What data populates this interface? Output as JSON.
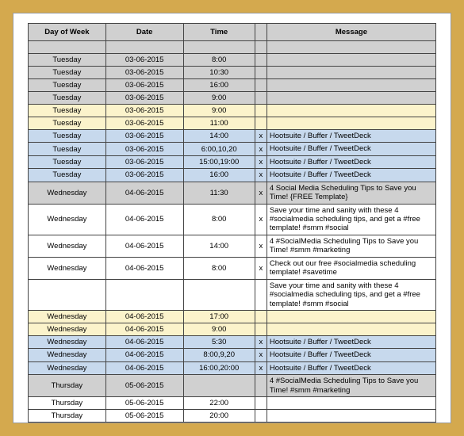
{
  "columns": [
    "Day of Week",
    "Date",
    "Time",
    "",
    "Message"
  ],
  "rows": [
    {
      "bg": "gray",
      "h": "norm",
      "day": "",
      "date": "",
      "time": "",
      "x": "",
      "msg": ""
    },
    {
      "bg": "gray",
      "h": "norm",
      "day": "Tuesday",
      "date": "03-06-2015",
      "time": "8:00",
      "x": "",
      "msg": ""
    },
    {
      "bg": "gray",
      "h": "norm",
      "day": "Tuesday",
      "date": "03-06-2015",
      "time": "10:30",
      "x": "",
      "msg": ""
    },
    {
      "bg": "gray",
      "h": "norm",
      "day": "Tuesday",
      "date": "03-06-2015",
      "time": "16:00",
      "x": "",
      "msg": ""
    },
    {
      "bg": "gray",
      "h": "norm",
      "day": "Tuesday",
      "date": "03-06-2015",
      "time": "9:00",
      "x": "",
      "msg": ""
    },
    {
      "bg": "yellow",
      "h": "norm",
      "day": "Tuesday",
      "date": "03-06-2015",
      "time": "9:00",
      "x": "",
      "msg": ""
    },
    {
      "bg": "yellow",
      "h": "norm",
      "day": "Tuesday",
      "date": "03-06-2015",
      "time": "11:00",
      "x": "",
      "msg": ""
    },
    {
      "bg": "blue",
      "h": "norm",
      "day": "Tuesday",
      "date": "03-06-2015",
      "time": "14:00",
      "x": "x",
      "msg": "Hootsuite / Buffer / TweetDeck"
    },
    {
      "bg": "blue",
      "h": "norm",
      "day": "Tuesday",
      "date": "03-06-2015",
      "time": "6:00,10,20",
      "x": "x",
      "msg": "Hootsuite / Buffer / TweetDeck"
    },
    {
      "bg": "blue",
      "h": "norm",
      "day": "Tuesday",
      "date": "03-06-2015",
      "time": "15:00,19:00",
      "x": "x",
      "msg": "Hootsuite / Buffer / TweetDeck"
    },
    {
      "bg": "blue",
      "h": "norm",
      "day": "Tuesday",
      "date": "03-06-2015",
      "time": "16:00",
      "x": "x",
      "msg": "Hootsuite / Buffer / TweetDeck"
    },
    {
      "bg": "gray",
      "h": "tall",
      "day": "Wednesday",
      "date": "04-06-2015",
      "time": "11:30",
      "x": "x",
      "msg": "4 Social Media Scheduling Tips to Save you Time! {FREE Template}"
    },
    {
      "bg": "white",
      "h": "taller",
      "day": "Wednesday",
      "date": "04-06-2015",
      "time": "8:00",
      "x": "x",
      "msg": "Save your time and sanity with these 4 #socialmedia scheduling tips, and get a #free template! #smm #social"
    },
    {
      "bg": "white",
      "h": "tall",
      "day": "Wednesday",
      "date": "04-06-2015",
      "time": "14:00",
      "x": "x",
      "msg": "4 #SocialMedia Scheduling Tips to Save you Time! #smm #marketing"
    },
    {
      "bg": "white",
      "h": "tall",
      "day": "Wednesday",
      "date": "04-06-2015",
      "time": "8:00",
      "x": "x",
      "msg": "Check out our free #socialmedia scheduling template! #savetime"
    },
    {
      "bg": "white",
      "h": "taller",
      "day": "",
      "date": "",
      "time": "",
      "x": "",
      "msg": "Save your time and sanity with these 4 #socialmedia scheduling tips, and get a #free template! #smm #social"
    },
    {
      "bg": "yellow",
      "h": "norm",
      "day": "Wednesday",
      "date": "04-06-2015",
      "time": "17:00",
      "x": "",
      "msg": ""
    },
    {
      "bg": "yellow",
      "h": "norm",
      "day": "Wednesday",
      "date": "04-06-2015",
      "time": "9:00",
      "x": "",
      "msg": ""
    },
    {
      "bg": "blue",
      "h": "norm",
      "day": "Wednesday",
      "date": "04-06-2015",
      "time": "5:30",
      "x": "x",
      "msg": "Hootsuite / Buffer / TweetDeck"
    },
    {
      "bg": "blue",
      "h": "norm",
      "day": "Wednesday",
      "date": "04-06-2015",
      "time": "8:00,9,20",
      "x": "x",
      "msg": "Hootsuite / Buffer / TweetDeck"
    },
    {
      "bg": "blue",
      "h": "norm",
      "day": "Wednesday",
      "date": "04-06-2015",
      "time": "16:00,20:00",
      "x": "x",
      "msg": "Hootsuite / Buffer / TweetDeck"
    },
    {
      "bg": "gray",
      "h": "tall",
      "day": "Thursday",
      "date": "05-06-2015",
      "time": "",
      "x": "",
      "msg": "4 #SocialMedia Scheduling Tips to Save you Time! #smm #marketing"
    },
    {
      "bg": "white",
      "h": "norm",
      "day": "Thursday",
      "date": "05-06-2015",
      "time": "22:00",
      "x": "",
      "msg": ""
    },
    {
      "bg": "white",
      "h": "norm",
      "day": "Thursday",
      "date": "05-06-2015",
      "time": "20:00",
      "x": "",
      "msg": ""
    }
  ],
  "bg_colors": {
    "gray": "#d0d0d0",
    "blue": "#c7d9ed",
    "yellow": "#fbf3cb",
    "white": "#ffffff"
  }
}
